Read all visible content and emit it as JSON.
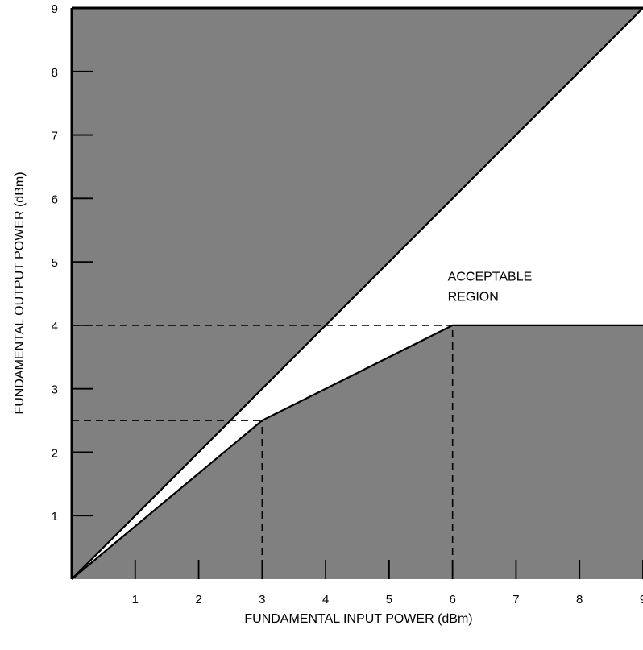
{
  "chart_data": {
    "type": "area",
    "xlabel": "FUNDAMENTAL INPUT POWER (dBm)",
    "ylabel": "FUNDAMENTAL OUTPUT POWER (dBm)",
    "xlim": [
      0,
      9
    ],
    "ylim": [
      0,
      9
    ],
    "x_ticks": [
      "1",
      "2",
      "3",
      "4",
      "5",
      "6",
      "7",
      "8",
      "9"
    ],
    "y_ticks": [
      "1",
      "2",
      "3",
      "4",
      "5",
      "6",
      "7",
      "8",
      "9"
    ],
    "grid": false,
    "upper_limit_line": {
      "x": [
        0,
        9
      ],
      "y": [
        0,
        9
      ]
    },
    "lower_limit_curve": {
      "x": [
        0,
        3,
        6,
        9
      ],
      "y": [
        0,
        2.5,
        4,
        4
      ]
    },
    "reference_lines": [
      {
        "x": [
          0,
          3
        ],
        "y": [
          2.5,
          2.5
        ]
      },
      {
        "x": [
          3,
          3
        ],
        "y": [
          0,
          2.5
        ]
      },
      {
        "x": [
          0,
          6
        ],
        "y": [
          4,
          4
        ]
      },
      {
        "x": [
          6,
          6
        ],
        "y": [
          0,
          4
        ]
      }
    ],
    "annotation": {
      "line1": "ACCEPTABLE",
      "line2": "REGION",
      "x": 6,
      "y": 4.7
    },
    "colors": {
      "excluded_region": "#808080",
      "acceptable_region": "#ffffff",
      "lines": "#000000"
    }
  }
}
